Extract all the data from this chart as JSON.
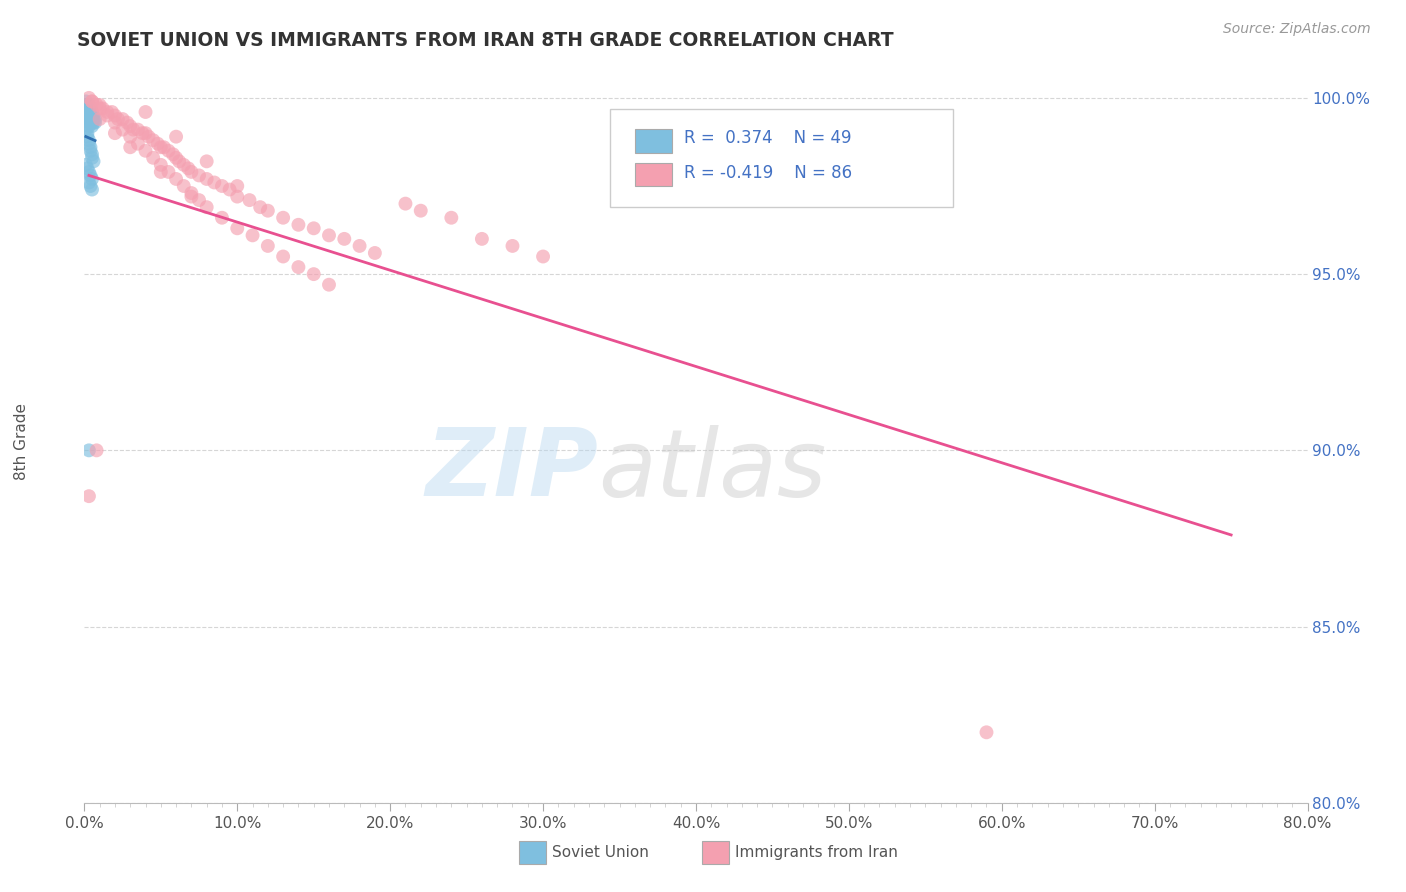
{
  "title": "SOVIET UNION VS IMMIGRANTS FROM IRAN 8TH GRADE CORRELATION CHART",
  "source_text": "Source: ZipAtlas.com",
  "ylabel": "8th Grade",
  "xlim": [
    0.0,
    0.8
  ],
  "ylim": [
    0.8,
    1.005
  ],
  "xtick_labels": [
    "0.0%",
    "",
    "",
    "",
    "",
    "",
    "",
    "",
    "",
    "10.0%",
    "",
    "",
    "",
    "",
    "",
    "",
    "",
    "",
    "",
    "20.0%",
    "",
    "",
    "",
    "",
    "",
    "",
    "",
    "",
    "",
    "30.0%",
    "",
    "",
    "",
    "",
    "",
    "",
    "",
    "",
    "",
    "40.0%",
    "",
    "",
    "",
    "",
    "",
    "",
    "",
    "",
    "",
    "50.0%",
    "",
    "",
    "",
    "",
    "",
    "",
    "",
    "",
    "",
    "60.0%",
    "",
    "",
    "",
    "",
    "",
    "",
    "",
    "",
    "",
    "70.0%",
    "",
    "",
    "",
    "",
    "",
    "",
    "",
    "",
    "",
    "80.0%"
  ],
  "xtick_vals_major": [
    0.0,
    0.1,
    0.2,
    0.3,
    0.4,
    0.5,
    0.6,
    0.7,
    0.8
  ],
  "ytick_labels": [
    "80.0%",
    "85.0%",
    "90.0%",
    "95.0%",
    "100.0%"
  ],
  "ytick_vals": [
    0.8,
    0.85,
    0.9,
    0.95,
    1.0
  ],
  "color_blue": "#7fbfdf",
  "color_pink": "#f4a0b0",
  "color_blue_line": "#3070b0",
  "color_pink_line": "#e85090",
  "background_color": "#ffffff",
  "grid_color": "#cccccc",
  "soviet_x": [
    0.001,
    0.001,
    0.001,
    0.002,
    0.002,
    0.002,
    0.002,
    0.002,
    0.003,
    0.003,
    0.003,
    0.003,
    0.003,
    0.003,
    0.003,
    0.004,
    0.004,
    0.004,
    0.004,
    0.004,
    0.005,
    0.005,
    0.005,
    0.005,
    0.005,
    0.006,
    0.006,
    0.006,
    0.007,
    0.007,
    0.001,
    0.002,
    0.002,
    0.003,
    0.003,
    0.004,
    0.004,
    0.005,
    0.005,
    0.006,
    0.001,
    0.002,
    0.003,
    0.004,
    0.005,
    0.003,
    0.004,
    0.005,
    0.003
  ],
  "soviet_y": [
    0.999,
    0.998,
    0.997,
    0.998,
    0.997,
    0.996,
    0.995,
    0.994,
    0.998,
    0.997,
    0.996,
    0.995,
    0.994,
    0.993,
    0.992,
    0.997,
    0.996,
    0.995,
    0.994,
    0.993,
    0.996,
    0.995,
    0.994,
    0.993,
    0.992,
    0.995,
    0.994,
    0.993,
    0.994,
    0.993,
    0.991,
    0.99,
    0.989,
    0.988,
    0.987,
    0.986,
    0.985,
    0.984,
    0.983,
    0.982,
    0.981,
    0.98,
    0.979,
    0.978,
    0.977,
    0.976,
    0.975,
    0.974,
    0.9
  ],
  "iran_x": [
    0.003,
    0.005,
    0.008,
    0.01,
    0.012,
    0.015,
    0.018,
    0.02,
    0.022,
    0.025,
    0.028,
    0.03,
    0.032,
    0.035,
    0.038,
    0.04,
    0.042,
    0.045,
    0.048,
    0.05,
    0.052,
    0.055,
    0.058,
    0.06,
    0.062,
    0.065,
    0.068,
    0.07,
    0.075,
    0.08,
    0.085,
    0.09,
    0.095,
    0.1,
    0.108,
    0.115,
    0.12,
    0.13,
    0.14,
    0.15,
    0.16,
    0.17,
    0.18,
    0.19,
    0.21,
    0.22,
    0.24,
    0.26,
    0.28,
    0.3,
    0.005,
    0.01,
    0.015,
    0.02,
    0.025,
    0.03,
    0.035,
    0.04,
    0.045,
    0.05,
    0.055,
    0.06,
    0.065,
    0.07,
    0.075,
    0.08,
    0.09,
    0.1,
    0.11,
    0.12,
    0.13,
    0.14,
    0.15,
    0.16,
    0.04,
    0.06,
    0.08,
    0.1,
    0.59,
    0.01,
    0.02,
    0.03,
    0.05,
    0.07,
    0.003,
    0.008
  ],
  "iran_y": [
    1.0,
    0.999,
    0.998,
    0.998,
    0.997,
    0.996,
    0.996,
    0.995,
    0.994,
    0.994,
    0.993,
    0.992,
    0.991,
    0.991,
    0.99,
    0.99,
    0.989,
    0.988,
    0.987,
    0.986,
    0.986,
    0.985,
    0.984,
    0.983,
    0.982,
    0.981,
    0.98,
    0.979,
    0.978,
    0.977,
    0.976,
    0.975,
    0.974,
    0.972,
    0.971,
    0.969,
    0.968,
    0.966,
    0.964,
    0.963,
    0.961,
    0.96,
    0.958,
    0.956,
    0.97,
    0.968,
    0.966,
    0.96,
    0.958,
    0.955,
    0.999,
    0.997,
    0.995,
    0.993,
    0.991,
    0.989,
    0.987,
    0.985,
    0.983,
    0.981,
    0.979,
    0.977,
    0.975,
    0.973,
    0.971,
    0.969,
    0.966,
    0.963,
    0.961,
    0.958,
    0.955,
    0.952,
    0.95,
    0.947,
    0.996,
    0.989,
    0.982,
    0.975,
    0.82,
    0.994,
    0.99,
    0.986,
    0.979,
    0.972,
    0.887,
    0.9
  ],
  "iran_trendline_x0": 0.003,
  "iran_trendline_x1": 0.75,
  "iran_trendline_y0": 0.978,
  "iran_trendline_y1": 0.876
}
